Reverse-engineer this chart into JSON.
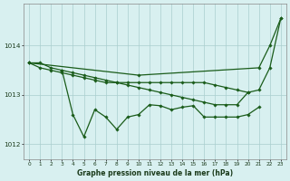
{
  "background_color": "#d8f0f0",
  "grid_color": "#aacece",
  "line_color": "#1a5c1a",
  "x_labels": [
    0,
    1,
    2,
    3,
    4,
    5,
    6,
    7,
    8,
    9,
    10,
    11,
    12,
    13,
    14,
    15,
    16,
    17,
    18,
    19,
    20,
    21,
    22,
    23
  ],
  "series1": [
    1013.65,
    1013.65,
    1013.55,
    1013.5,
    1013.45,
    1013.4,
    1013.35,
    1013.3,
    1013.25,
    1013.2,
    1013.15,
    1013.1,
    1013.05,
    1013.0,
    1012.95,
    1012.9,
    1012.85,
    1012.8,
    1012.8,
    1012.8,
    1013.05,
    1013.1,
    1013.55,
    1014.55
  ],
  "series2": [
    1013.65,
    1013.55,
    1013.5,
    1013.45,
    1013.4,
    1013.35,
    1013.3,
    1013.25,
    1013.25,
    1013.25,
    1013.25,
    1013.25,
    1013.25,
    1013.25,
    1013.25,
    1013.25,
    1013.25,
    1013.2,
    1013.15,
    1013.1,
    1013.05,
    null,
    null,
    null
  ],
  "series3": [
    null,
    null,
    null,
    1013.5,
    1012.6,
    1012.15,
    1012.7,
    1012.55,
    1012.3,
    1012.55,
    1012.6,
    1012.8,
    1012.78,
    1012.7,
    1012.75,
    1012.78,
    1012.55,
    1012.55,
    1012.55,
    1012.55,
    1012.6,
    1012.75,
    null,
    null
  ],
  "series4": [
    1013.65,
    null,
    null,
    null,
    null,
    null,
    null,
    null,
    null,
    null,
    1013.4,
    null,
    null,
    null,
    null,
    null,
    null,
    null,
    null,
    null,
    null,
    1013.55,
    1014.0,
    1014.55
  ],
  "yticks": [
    1012,
    1013,
    1014
  ],
  "ylim": [
    1011.7,
    1014.85
  ],
  "xlim": [
    -0.5,
    23.5
  ],
  "xlabel": "Graphe pression niveau de la mer (hPa)"
}
